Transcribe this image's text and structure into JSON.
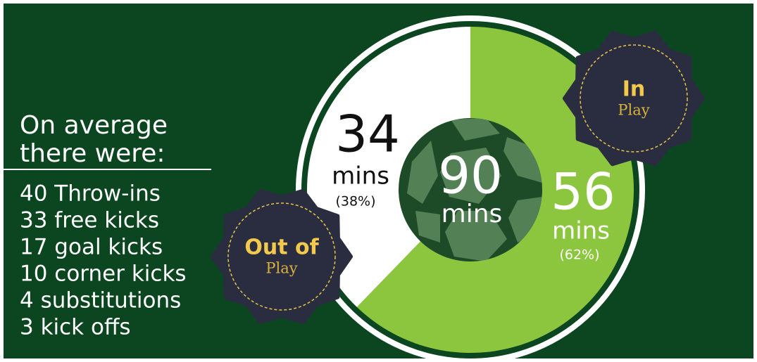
{
  "intro": [
    "On average",
    "there were:"
  ],
  "stats": [
    "40 Throw-ins",
    "33 free kicks",
    "17 goal kicks",
    "10 corner kicks",
    "4 substitutions",
    "3 kick offs"
  ],
  "pie": {
    "total": {
      "value": 90,
      "unit": "mins"
    },
    "segments": [
      {
        "badge_top": "Out of",
        "badge_bottom": "Play",
        "value": 34,
        "unit": "mins",
        "percent_label": "(38%)",
        "color": "#ffffff"
      },
      {
        "badge_top": "In",
        "badge_bottom": "Play",
        "value": 56,
        "unit": "mins",
        "percent_label": "(62%)",
        "color": "#8cc63f"
      }
    ]
  }
}
